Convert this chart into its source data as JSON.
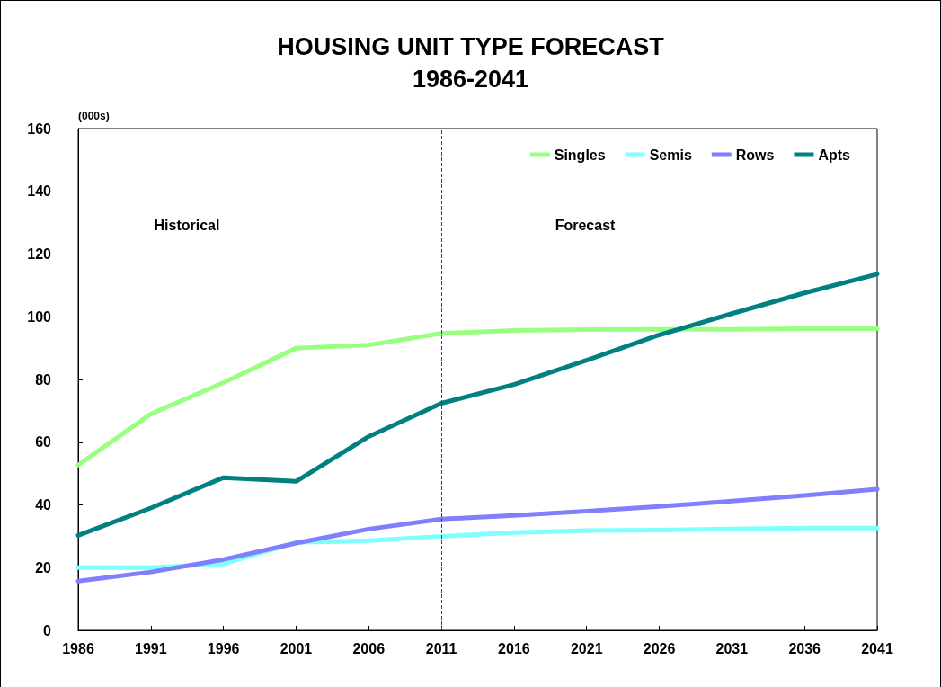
{
  "chart_data": {
    "type": "line",
    "title": "HOUSING UNIT TYPE FORECAST\n1986-2041",
    "ylabel": "(000s)",
    "x": [
      1986,
      1991,
      1996,
      2001,
      2006,
      2011,
      2016,
      2021,
      2026,
      2031,
      2036,
      2041
    ],
    "series": [
      {
        "name": "Singles",
        "color": "#99ff80",
        "values": [
          52.7,
          69,
          79,
          90,
          91,
          94.7,
          95.6,
          95.9,
          96,
          96,
          96.2,
          96.2
        ]
      },
      {
        "name": "Semis",
        "color": "#80ffff",
        "values": [
          20,
          20,
          21.2,
          28,
          28.6,
          30,
          31.2,
          31.8,
          32,
          32.3,
          32.6,
          32.6
        ]
      },
      {
        "name": "Rows",
        "color": "#8080ff",
        "values": [
          15.7,
          18.6,
          22.6,
          27.8,
          32.3,
          35.5,
          36.6,
          38,
          39.5,
          41.2,
          43,
          45
        ]
      },
      {
        "name": "Apts",
        "color": "#008080",
        "values": [
          30.3,
          39,
          48.7,
          47.5,
          61.8,
          72.4,
          78.4,
          86.1,
          94.2,
          101,
          107.6,
          113.6
        ]
      }
    ],
    "xlim": [
      1986,
      2041
    ],
    "xticks": [
      1986,
      1991,
      1996,
      2001,
      2006,
      2011,
      2016,
      2021,
      2026,
      2031,
      2036,
      2041
    ],
    "ylim": [
      0,
      160
    ],
    "yticks": [
      0,
      20,
      40,
      60,
      80,
      100,
      120,
      140,
      160
    ],
    "ref_lines": [
      {
        "axis": "x",
        "value": 2011,
        "color": "#404040",
        "line_style": "dashed"
      }
    ],
    "annotations": [
      "Historical",
      "Forecast"
    ],
    "grid": false,
    "legend": "top right",
    "marker": "none",
    "line_style": "solid"
  }
}
